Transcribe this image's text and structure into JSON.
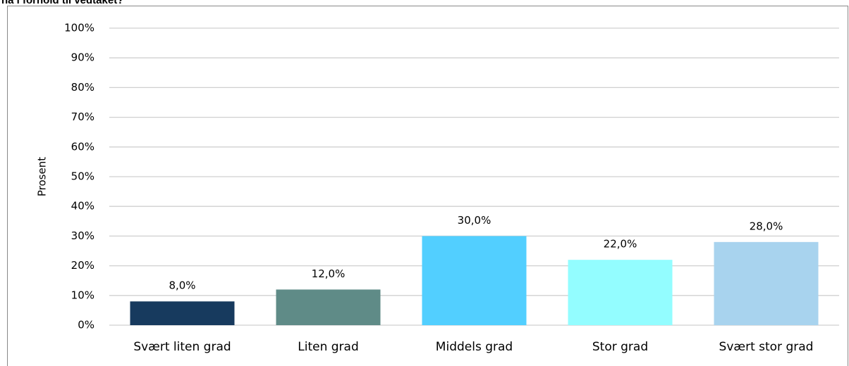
{
  "chart_data": {
    "type": "bar",
    "title": "ha i forhold til vedtaket?",
    "y_label": "Prosent",
    "categories": [
      "Svært liten grad",
      "Liten grad",
      "Middels grad",
      "Stor grad",
      "Svært stor grad"
    ],
    "values": [
      8,
      12,
      30,
      22,
      28
    ],
    "value_labels": [
      "8,0%",
      "12,0%",
      "30,0%",
      "22,0%",
      "28,0%"
    ],
    "colors": [
      "#173a5e",
      "#5f8b87",
      "#52cfff",
      "#93fdff",
      "#a8d3ee"
    ],
    "ylim": [
      0,
      100
    ],
    "yticks": [
      {
        "value": 0,
        "label": "0%"
      },
      {
        "value": 10,
        "label": "10%"
      },
      {
        "value": 20,
        "label": "20%"
      },
      {
        "value": 30,
        "label": "30%"
      },
      {
        "value": 40,
        "label": "40%"
      },
      {
        "value": 50,
        "label": "50%"
      },
      {
        "value": 60,
        "label": "60%"
      },
      {
        "value": 70,
        "label": "70%"
      },
      {
        "value": 80,
        "label": "80%"
      },
      {
        "value": 90,
        "label": "90%"
      },
      {
        "value": 100,
        "label": "100%"
      }
    ],
    "grid": true
  }
}
